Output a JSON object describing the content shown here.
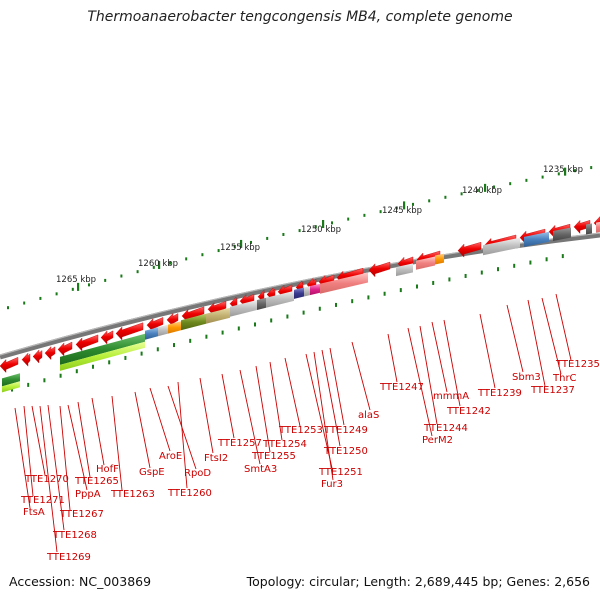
{
  "title": "Thermoanaerobacter tengcongensis MB4, complete genome",
  "footer": {
    "accession": "Accession: NC_003869",
    "summary": "Topology: circular; Length: 2,689,445 bp; Genes: 2,656"
  },
  "scale_labels": [
    "1235 kbp",
    "1240 kbp",
    "1245 kbp",
    "1250 kbp",
    "1255 kbp",
    "1260 kbp",
    "1265 kbp"
  ],
  "gene_labels": [
    "TTE1235",
    "ThrC",
    "TTE1237",
    "Sbm3",
    "TTE1239",
    "TTE1242",
    "mmmA",
    "TTE1244",
    "PerM2",
    "TTE1247",
    "alaS",
    "TTE1249",
    "TTE1250",
    "Fur3",
    "TTE1251",
    "TTE1253",
    "TTE1254",
    "TTE1255",
    "SmtA3",
    "TTE1257",
    "FtsI2",
    "TTE1260",
    "RpoD",
    "AroE",
    "GspE",
    "TTE1263",
    "HofF",
    "TTE1265",
    "PppA",
    "TTE1267",
    "TTE1268",
    "TTE1269",
    "TTE1270",
    "TTE1271",
    "FtsA"
  ],
  "colors": {
    "forward_gene": "#ee0000",
    "backbone": "#777777",
    "tick": "#1a7a1a",
    "label": "#cc0000"
  }
}
